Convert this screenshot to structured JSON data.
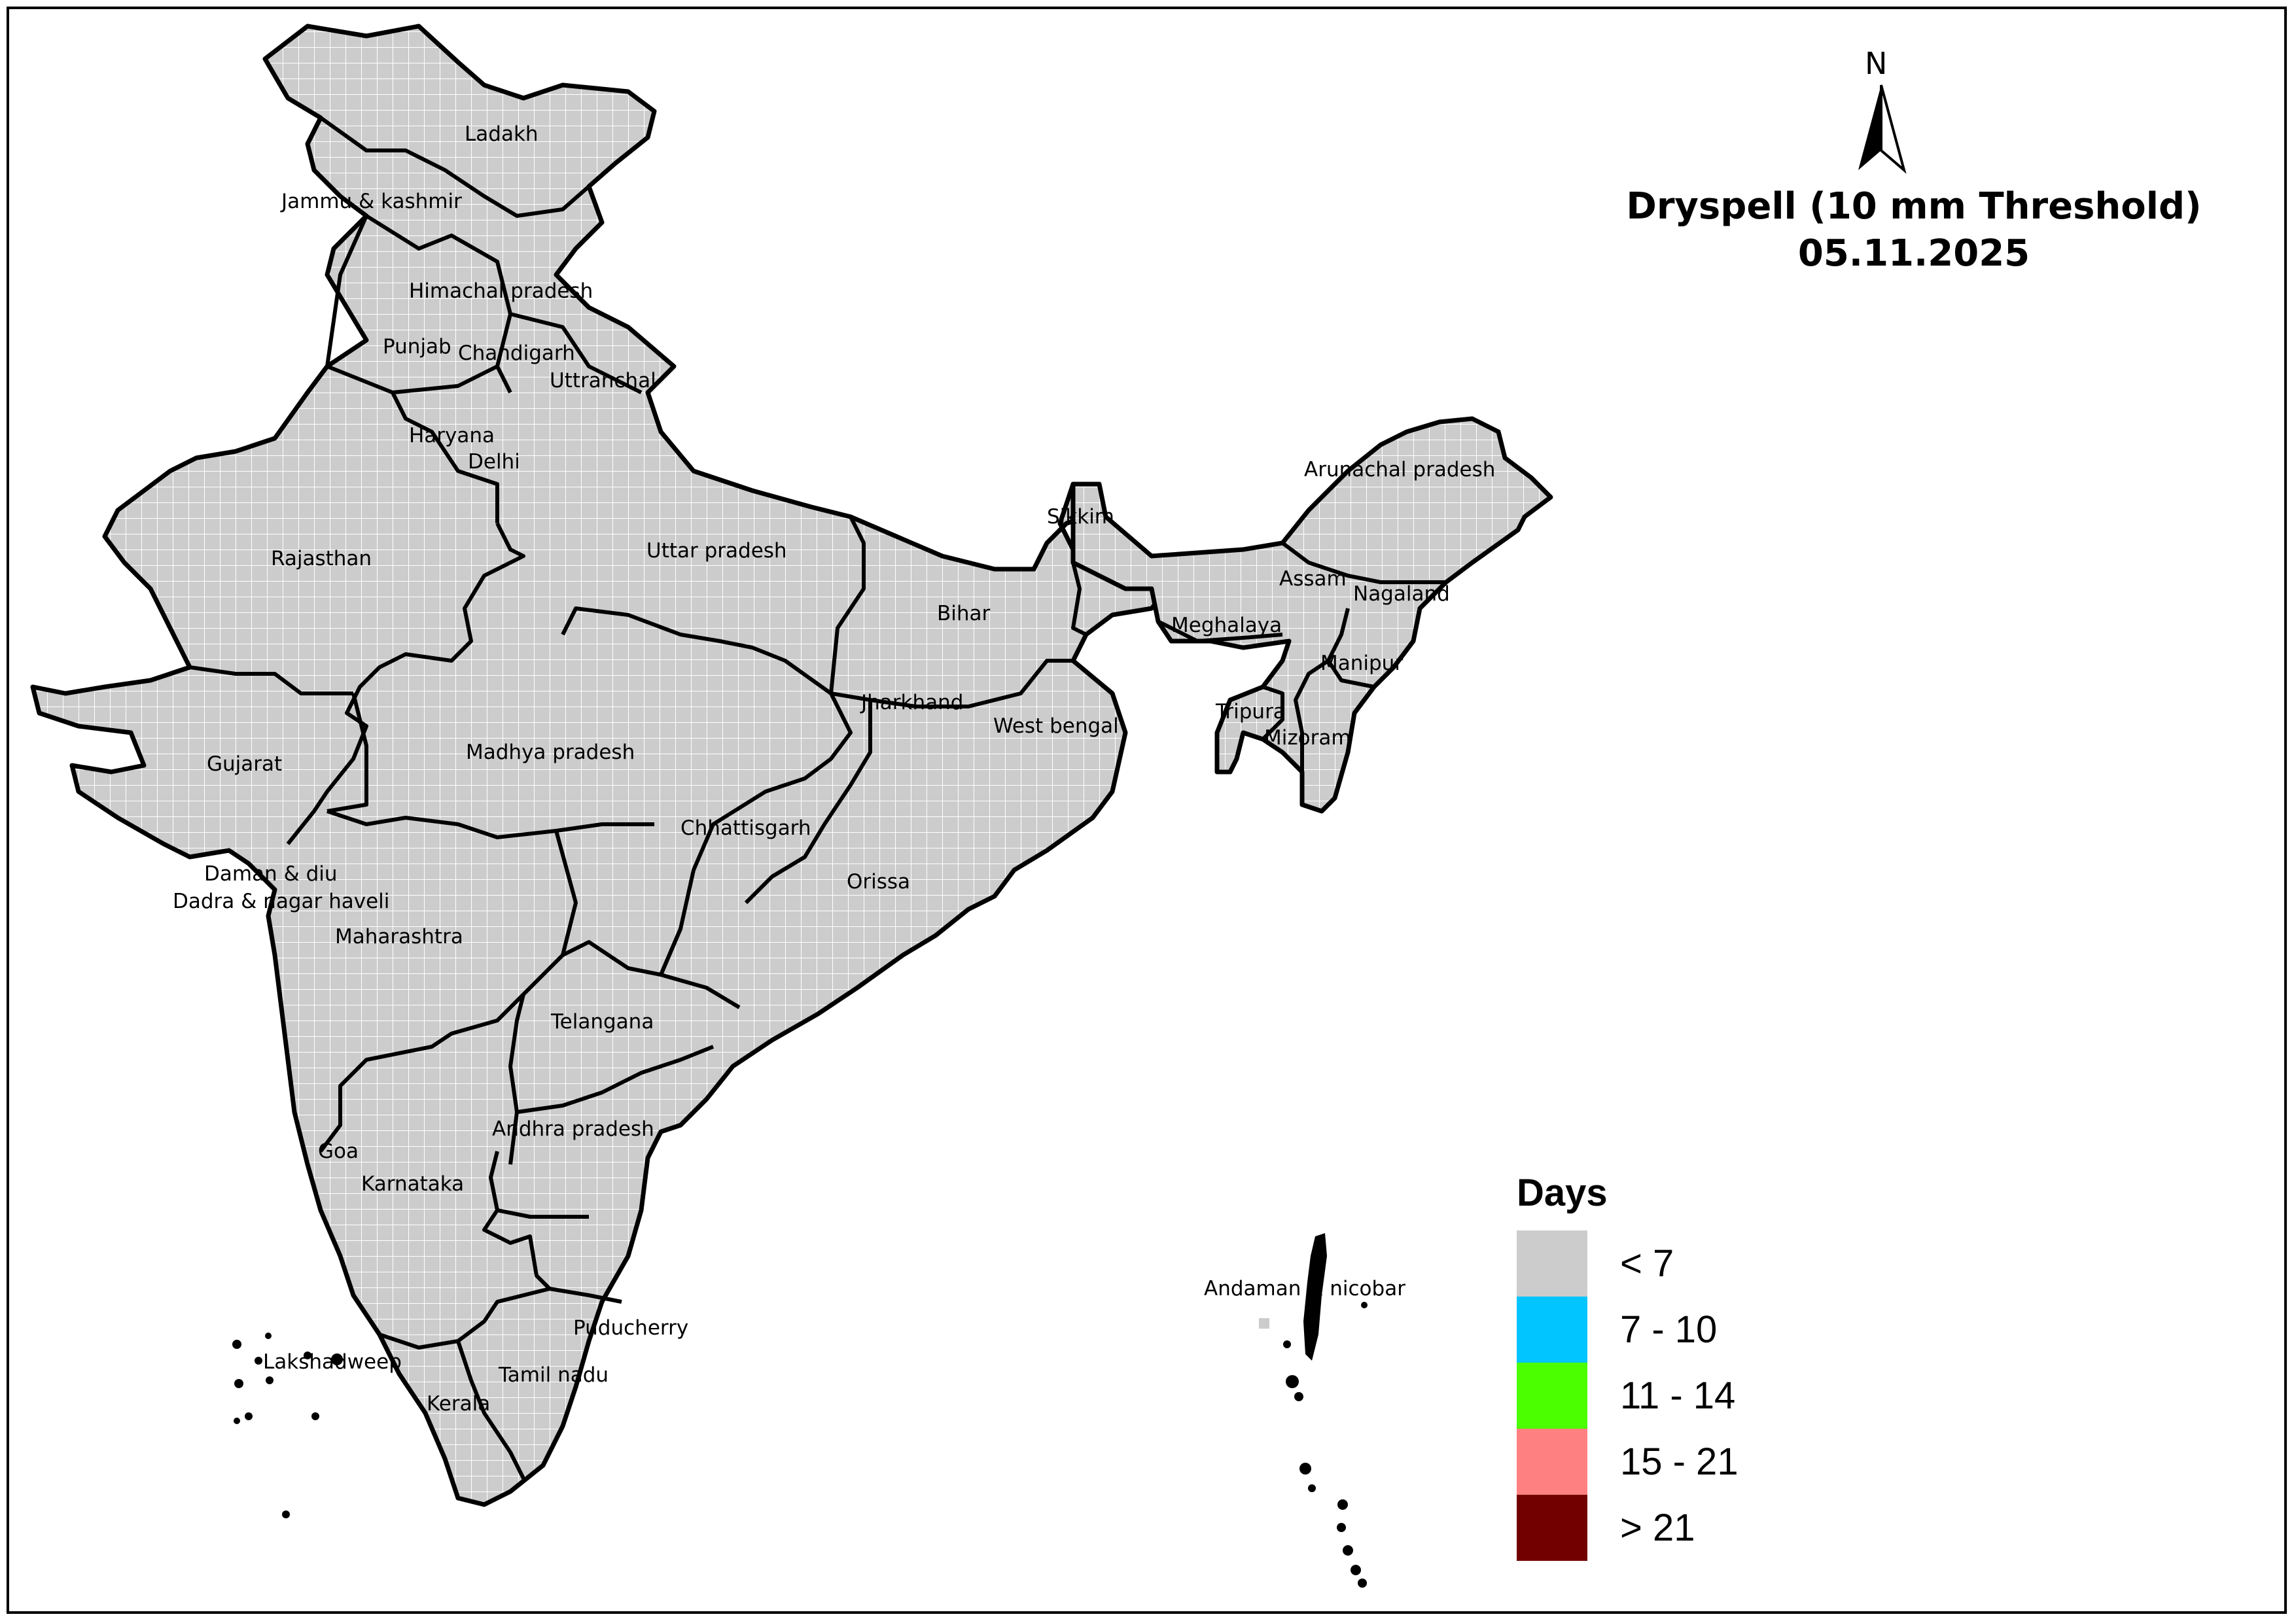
{
  "title": {
    "line1": "Dryspell (10 mm Threshold)",
    "line2": "05.11.2025"
  },
  "north_arrow": {
    "label": "N"
  },
  "legend": {
    "title": "Days",
    "items": [
      {
        "label": "< 7",
        "color": "#cccccc"
      },
      {
        "label": "7 - 10",
        "color": "#00c5ff"
      },
      {
        "label": "11 - 14",
        "color": "#4cff00"
      },
      {
        "label": "15 - 21",
        "color": "#ff8080"
      },
      {
        "label": "> 21",
        "color": "#730000"
      }
    ]
  },
  "states": [
    "Ladakh",
    "Jammu & kashmir",
    "Himachal pradesh",
    "Punjab",
    "Chandigarh",
    "Uttranchal",
    "Haryana",
    "Delhi",
    "Rajasthan",
    "Uttar pradesh",
    "Bihar",
    "Sikkim",
    "Arunachal pradesh",
    "Assam",
    "Nagaland",
    "Meghalaya",
    "Manipur",
    "Tripura",
    "Mizoram",
    "Jharkhand",
    "West bengal",
    "Gujarat",
    "Madhya pradesh",
    "Chhattisgarh",
    "Orissa",
    "Daman & diu",
    "Dadra & nagar haveli",
    "Maharashtra",
    "Telangana",
    "Andhra pradesh",
    "Goa",
    "Karnataka",
    "Puducherry",
    "Lakshadweep",
    "Tamil nadu",
    "Kerala",
    "Andaman & nicobar"
  ],
  "fill_color": "#cccccc",
  "boundary_color": "#000000",
  "grid_color": "#ffffff"
}
